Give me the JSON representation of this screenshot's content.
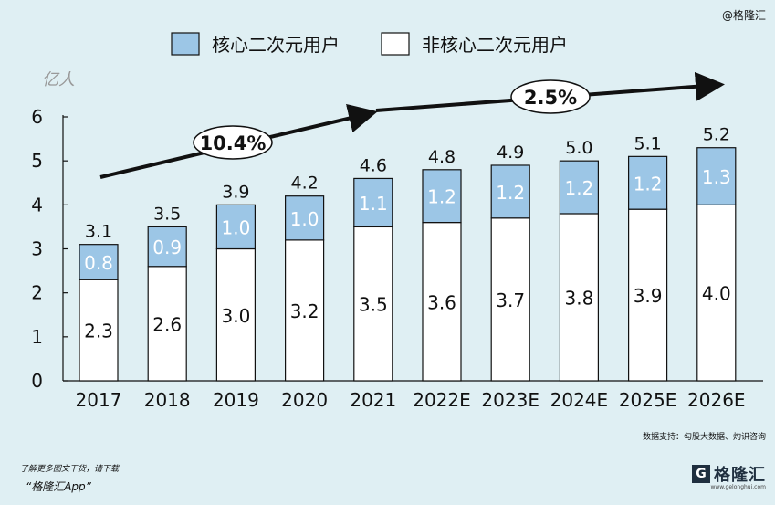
{
  "watermark": {
    "top_right": "@格隆汇",
    "note": "了解更多图文干货，请下载",
    "app": "“格隆汇App”",
    "source": "数据支持：勾股大数据、灼识咨询",
    "brand_name": "格隆汇",
    "brand_url": "www.gelonghui.com"
  },
  "colors": {
    "core": "#9cc6e6",
    "non_core": "#ffffff",
    "stroke": "#111111",
    "background": "#dfeff3"
  },
  "chart_data": {
    "type": "bar",
    "stacked": true,
    "ylabel": "亿人",
    "ylim": [
      0,
      6
    ],
    "yticks": [
      0,
      1,
      2,
      3,
      4,
      5,
      6
    ],
    "legend_position": "top",
    "grid": false,
    "categories": [
      "2017",
      "2018",
      "2019",
      "2020",
      "2021",
      "2022E",
      "2023E",
      "2024E",
      "2025E",
      "2026E"
    ],
    "series": [
      {
        "name": "非核心二次元用户",
        "values": [
          2.3,
          2.6,
          3.0,
          3.2,
          3.5,
          3.6,
          3.7,
          3.8,
          3.9,
          4.0
        ],
        "labels": [
          "2.3",
          "2.6",
          "3.0",
          "3.2",
          "3.5",
          "3.6",
          "3.7",
          "3.8",
          "3.9",
          "4.0"
        ]
      },
      {
        "name": "核心二次元用户",
        "values": [
          0.8,
          0.9,
          1.0,
          1.0,
          1.1,
          1.2,
          1.2,
          1.2,
          1.2,
          1.3
        ],
        "labels": [
          "0.8",
          "0.9",
          "1.0",
          "1.0",
          "1.1",
          "1.2",
          "1.2",
          "1.2",
          "1.2",
          "1.3"
        ]
      }
    ],
    "totals": [
      "3.1",
      "3.5",
      "3.9",
      "4.2",
      "4.6",
      "4.8",
      "4.9",
      "5.0",
      "5.1",
      "5.2"
    ],
    "legend_order": [
      "核心二次元用户",
      "非核心二次元用户"
    ],
    "growth_annotations": [
      {
        "label": "10.4%",
        "from": "2017",
        "to": "2021"
      },
      {
        "label": "2.5%",
        "from": "2021",
        "to": "2026E"
      }
    ]
  }
}
